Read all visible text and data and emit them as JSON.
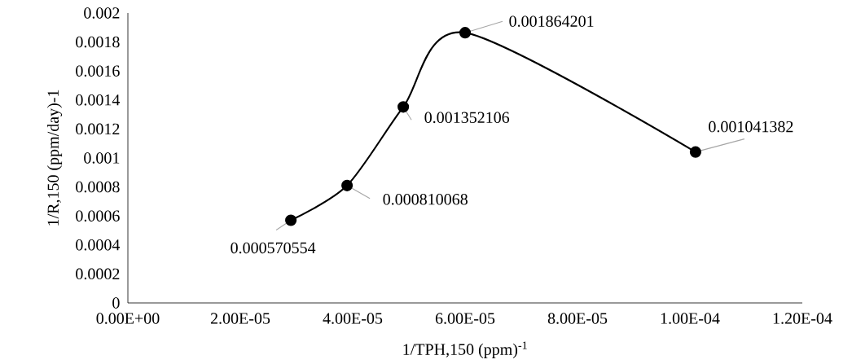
{
  "chart_data": {
    "type": "line",
    "xlabel": "1/TPH,150 (ppm)$^{-1}$",
    "ylabel": "1/R,150 (ppm/day)-1",
    "x": [
      2.9e-05,
      3.9e-05,
      4.9e-05,
      6e-05,
      0.000101
    ],
    "series": [
      {
        "color": "#000000",
        "values": [
          0.000570554,
          0.000810068,
          0.001352106,
          0.001864201,
          0.001041382
        ]
      }
    ],
    "data_labels": true,
    "marker": "circle",
    "xlim": [
      0,
      0.00012
    ],
    "xticks": [
      {
        "value": 0,
        "label": "0.00E+00"
      },
      {
        "value": 2e-05,
        "label": "2.00E-05"
      },
      {
        "value": 4e-05,
        "label": "4.00E-05"
      },
      {
        "value": 6e-05,
        "label": "6.00E-05"
      },
      {
        "value": 8e-05,
        "label": "8.00E-05"
      },
      {
        "value": 0.0001,
        "label": "1.00E-04"
      },
      {
        "value": 0.00012,
        "label": "1.20E-04"
      }
    ],
    "ylim": [
      0,
      0.002
    ],
    "yticks": [
      0,
      0.0002,
      0.0004,
      0.0006,
      0.0008,
      0.001,
      0.0012,
      0.0014,
      0.0016,
      0.0018,
      0.002
    ]
  }
}
